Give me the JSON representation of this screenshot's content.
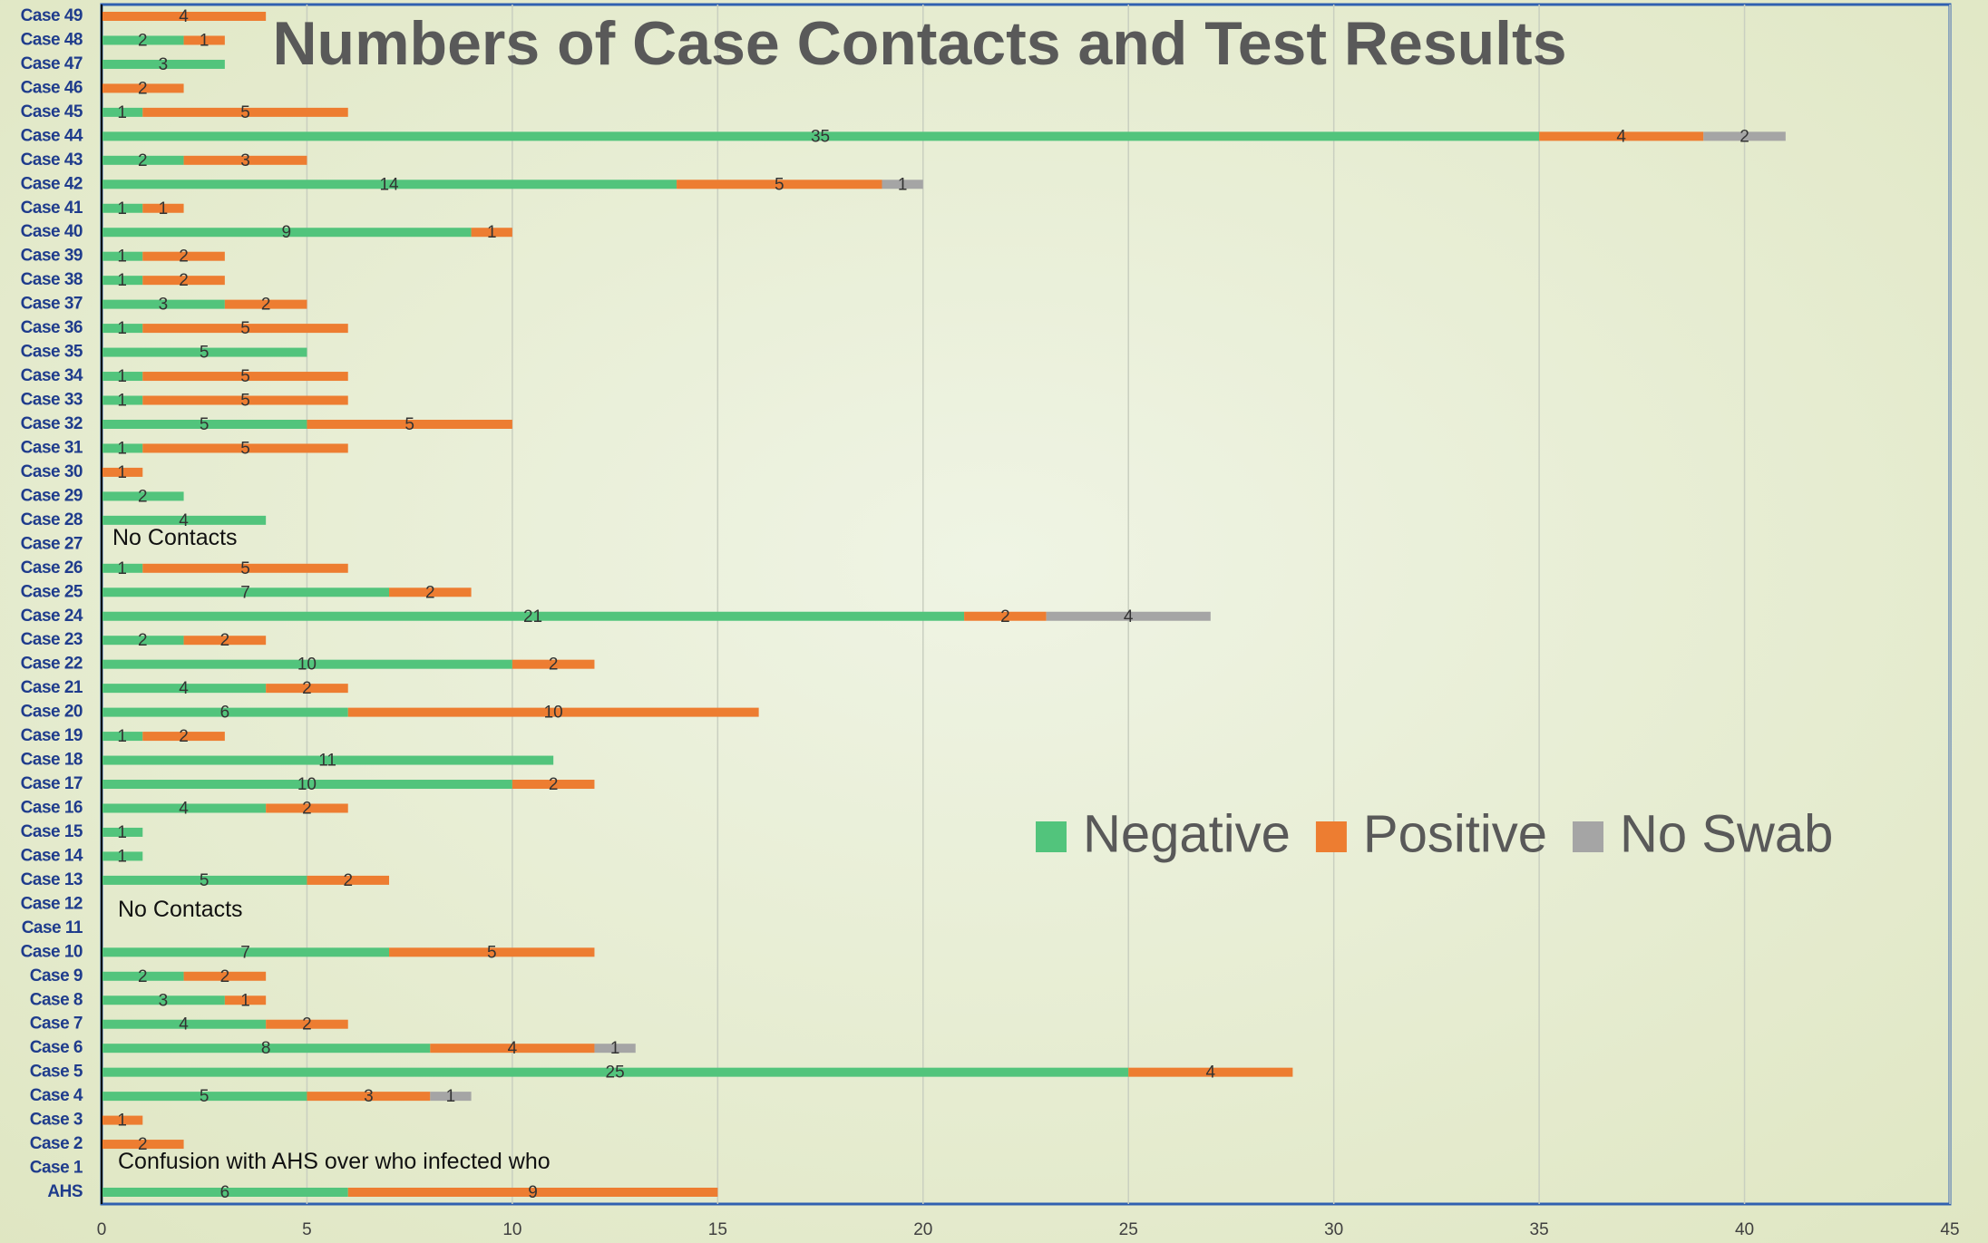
{
  "chart_data": {
    "type": "stacked-bar-horizontal",
    "title": "Numbers of Case Contacts and Test Results",
    "categories": [
      "AHS",
      "Case 1",
      "Case 2",
      "Case 3",
      "Case 4",
      "Case 5",
      "Case 6",
      "Case 7",
      "Case 8",
      "Case 9",
      "Case 10",
      "Case 11",
      "Case 12",
      "Case 13",
      "Case 14",
      "Case 15",
      "Case 16",
      "Case 17",
      "Case 18",
      "Case 19",
      "Case 20",
      "Case 21",
      "Case 22",
      "Case 23",
      "Case 24",
      "Case 25",
      "Case 26",
      "Case 27",
      "Case 28",
      "Case 29",
      "Case 30",
      "Case 31",
      "Case 32",
      "Case 33",
      "Case 34",
      "Case 35",
      "Case 36",
      "Case 37",
      "Case 38",
      "Case 39",
      "Case 40",
      "Case 41",
      "Case 42",
      "Case 43",
      "Case 44",
      "Case 45",
      "Case 46",
      "Case 47",
      "Case 48",
      "Case 49"
    ],
    "series": [
      {
        "name": "Negative",
        "color": "#52c47c",
        "values": [
          6,
          null,
          null,
          null,
          5,
          25,
          8,
          4,
          3,
          2,
          7,
          null,
          null,
          5,
          1,
          1,
          4,
          10,
          11,
          1,
          6,
          4,
          10,
          2,
          21,
          7,
          1,
          null,
          4,
          2,
          null,
          1,
          5,
          1,
          1,
          5,
          1,
          3,
          1,
          1,
          9,
          1,
          14,
          2,
          35,
          1,
          null,
          3,
          2,
          null
        ]
      },
      {
        "name": "Positive",
        "color": "#ed7d31",
        "values": [
          9,
          null,
          2,
          1,
          3,
          4,
          4,
          2,
          1,
          2,
          5,
          null,
          null,
          2,
          null,
          null,
          2,
          2,
          null,
          2,
          10,
          2,
          2,
          2,
          2,
          2,
          5,
          null,
          null,
          null,
          1,
          5,
          5,
          5,
          5,
          null,
          5,
          2,
          2,
          2,
          1,
          1,
          5,
          3,
          4,
          5,
          2,
          null,
          1,
          4
        ]
      },
      {
        "name": "No Swab",
        "color": "#a5a5a5",
        "values": [
          null,
          null,
          null,
          null,
          1,
          null,
          1,
          null,
          null,
          null,
          null,
          null,
          null,
          null,
          null,
          null,
          null,
          null,
          null,
          null,
          null,
          null,
          null,
          null,
          4,
          null,
          null,
          null,
          null,
          null,
          null,
          null,
          null,
          null,
          null,
          null,
          null,
          null,
          null,
          null,
          null,
          null,
          1,
          null,
          2,
          null,
          null,
          null,
          null,
          null
        ]
      }
    ],
    "annotations": [
      {
        "text": "No Contacts",
        "categories": [
          "Case 27"
        ]
      },
      {
        "text": "No Contacts",
        "categories": [
          "Case 11",
          "Case 12"
        ]
      },
      {
        "text": "Confusion with AHS over who infected who",
        "categories": [
          "Case 1"
        ]
      }
    ],
    "xlim": [
      0,
      45
    ],
    "xticks": [
      0,
      5,
      10,
      15,
      20,
      25,
      30,
      35,
      40,
      45
    ],
    "grid": true,
    "legend": "right"
  }
}
